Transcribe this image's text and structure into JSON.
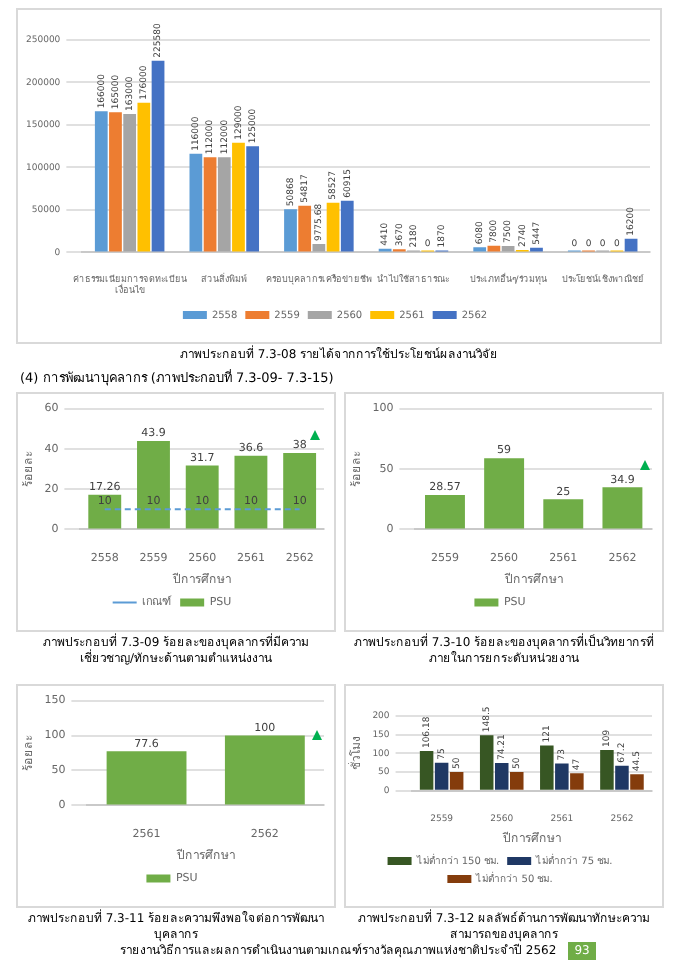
{
  "chart_data": [
    {
      "type": "bar",
      "title": "ภาพประกอบที่ 7.3-08 รายได้จากการใช้ประโยชน์ผลงานวิจัย",
      "annotations": [
        "(4) การพัฒนาบุคลากร (ภาพประกอบที่ 7.3-09- 7.3-15)"
      ],
      "categories": [
        "ค่าธรรมเนียมการจดทะเบียน เงื่อนไข",
        "ส่วนสิ่งพิมพ์",
        "ครอบบุคลากรเครือข่ายชีพ",
        "นำไปใช้สาธารณะ",
        "ประเภทอื่นๆ/ร่วมทุน",
        "ประโยชน์เชิงพาณิชย์"
      ],
      "series": [
        {
          "name": "2558",
          "color": "#5b9bd5",
          "values": [
            166000,
            116000,
            50868,
            4410,
            6080,
            0
          ]
        },
        {
          "name": "2559",
          "color": "#ed7d31",
          "values": [
            165000,
            112000,
            54817,
            3670,
            7800,
            0
          ]
        },
        {
          "name": "2560",
          "color": "#a5a5a5",
          "values": [
            163000,
            112000,
            9775.68,
            2180,
            7500,
            0
          ]
        },
        {
          "name": "2561",
          "color": "#ffc000",
          "values": [
            176000,
            129000,
            58527,
            0,
            2740,
            0
          ]
        },
        {
          "name": "2562",
          "color": "#4472c4",
          "values": [
            225580,
            125000,
            60915,
            1870,
            5447,
            16200
          ]
        }
      ],
      "ylim": [
        0,
        250000
      ],
      "yticks": [
        0,
        50000,
        100000,
        150000,
        200000,
        250000
      ],
      "grid": "y",
      "legend": "bottom",
      "data_labels": true
    },
    {
      "type": "bar",
      "title": "ภาพประกอบที่ 7.3-09 ร้อยละของบุคลากรที่มีความเชี่ยวชาญ/ทักษะด้านตามตำแหน่งงาน",
      "xlabel": "ปีการศึกษา",
      "ylabel": "ร้อยละ",
      "categories": [
        "2558",
        "2559",
        "2560",
        "2561",
        "2562"
      ],
      "series": [
        {
          "name": "PSU",
          "color": "#70ad47",
          "values": [
            17.26,
            43.9,
            31.7,
            36.6,
            38
          ]
        },
        {
          "name": "เกณฑ์",
          "type": "line",
          "color": "#5b9bd5",
          "line_style": "dashed",
          "marker": "none",
          "values": [
            10,
            10,
            10,
            10,
            10
          ]
        }
      ],
      "ylim": [
        0,
        60
      ],
      "yticks": [
        0,
        20,
        40,
        60
      ],
      "grid": "y",
      "legend": "bottom",
      "data_labels": true
    },
    {
      "type": "bar",
      "title": "ภาพประกอบที่ 7.3-10 ร้อยละของบุคลากรที่เป็นวิทยากรที่ภายในการยกระดับหน่วยงาน",
      "xlabel": "ปีการศึกษา",
      "ylabel": "ร้อยละ",
      "categories": [
        "2559",
        "2560",
        "2561",
        "2562"
      ],
      "series": [
        {
          "name": "PSU",
          "color": "#70ad47",
          "values": [
            28.57,
            59,
            25,
            34.9
          ]
        }
      ],
      "ylim": [
        0,
        100
      ],
      "yticks": [
        0,
        50,
        100
      ],
      "grid": "y",
      "legend": "bottom",
      "data_labels": true
    },
    {
      "type": "bar",
      "title": "ภาพประกอบที่ 7.3-11 ร้อยละความพึงพอใจต่อการพัฒนาบุคลากร",
      "xlabel": "ปีการศึกษา",
      "ylabel": "ร้อยละ",
      "categories": [
        "2561",
        "2562"
      ],
      "series": [
        {
          "name": "PSU",
          "color": "#70ad47",
          "values": [
            77.6,
            100
          ]
        }
      ],
      "ylim": [
        0,
        150
      ],
      "yticks": [
        0,
        50,
        100,
        150
      ],
      "grid": "y",
      "legend": "bottom",
      "data_labels": true
    },
    {
      "type": "bar",
      "title": "ภาพประกอบที่ 7.3-12 ผลลัพธ์ด้านการพัฒนาทักษะความสามารถของบุคลากร",
      "annotations": [
        "รายงานวิธีการและผลการดำเนินงานตามเกณฑ์รางวัลคุณภาพแห่งชาติประจำปี 2562",
        "93"
      ],
      "xlabel": "ปีการศึกษา",
      "ylabel": "ชั่วโมง",
      "categories": [
        "2559",
        "2560",
        "2561",
        "2562"
      ],
      "series": [
        {
          "name": "ไม่ต่ำกว่า 150 ชม.",
          "color": "#375623",
          "values": [
            106.18,
            148.5,
            121,
            109
          ]
        },
        {
          "name": "ไม่ต่ำกว่า 75 ชม.",
          "color": "#1f3864",
          "values": [
            75,
            74.21,
            73,
            67.2
          ]
        },
        {
          "name": "ไม่ต่ำกว่า 50 ชม.",
          "color": "#843c0c",
          "values": [
            50,
            50,
            47,
            44.5
          ]
        }
      ],
      "ylim": [
        0,
        200
      ],
      "yticks": [
        0,
        50,
        100,
        150,
        200
      ],
      "grid": "y",
      "legend": "bottom",
      "data_labels": true
    }
  ]
}
